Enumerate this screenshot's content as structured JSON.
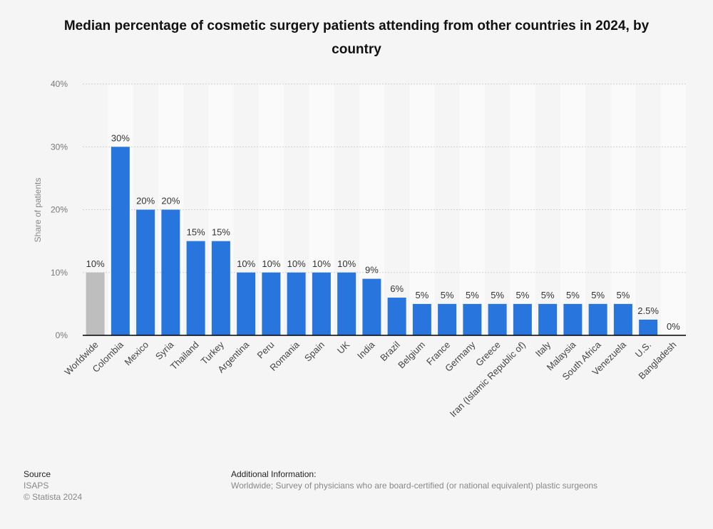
{
  "chart_data": {
    "type": "bar",
    "title": "Median percentage of cosmetic surgery patients attending from other countries in 2024, by country",
    "xlabel": "",
    "ylabel": "Share of patients",
    "ylim": [
      0,
      40
    ],
    "yticks": [
      "0%",
      "10%",
      "20%",
      "30%",
      "40%"
    ],
    "grid": true,
    "categories": [
      "Worldwide",
      "Colombia",
      "Mexico",
      "Syria",
      "Thailand",
      "Turkey",
      "Argentina",
      "Peru",
      "Romania",
      "Spain",
      "UK",
      "India",
      "Brazil",
      "Belgium",
      "France",
      "Germany",
      "Greece",
      "Iran (Islamic Republic of)",
      "Italy",
      "Malaysia",
      "South Africa",
      "Venezuela",
      "U.S.",
      "Bangladesh"
    ],
    "values": [
      10,
      30,
      20,
      20,
      15,
      15,
      10,
      10,
      10,
      10,
      10,
      9,
      6,
      5,
      5,
      5,
      5,
      5,
      5,
      5,
      5,
      5,
      2.5,
      0
    ],
    "data_labels": [
      "10%",
      "30%",
      "20%",
      "20%",
      "15%",
      "15%",
      "10%",
      "10%",
      "10%",
      "10%",
      "10%",
      "9%",
      "6%",
      "5%",
      "5%",
      "5%",
      "5%",
      "5%",
      "5%",
      "5%",
      "5%",
      "5%",
      "2.5%",
      "0%"
    ],
    "colors": {
      "bar": "#2876dd",
      "highlight": "#bebebe"
    }
  },
  "footer": {
    "source_heading": "Source",
    "source": "ISAPS",
    "copyright": "© Statista 2024",
    "info_heading": "Additional Information:",
    "info": "Worldwide; Survey of physicians who are board-certified (or national equivalent) plastic surgeons"
  }
}
